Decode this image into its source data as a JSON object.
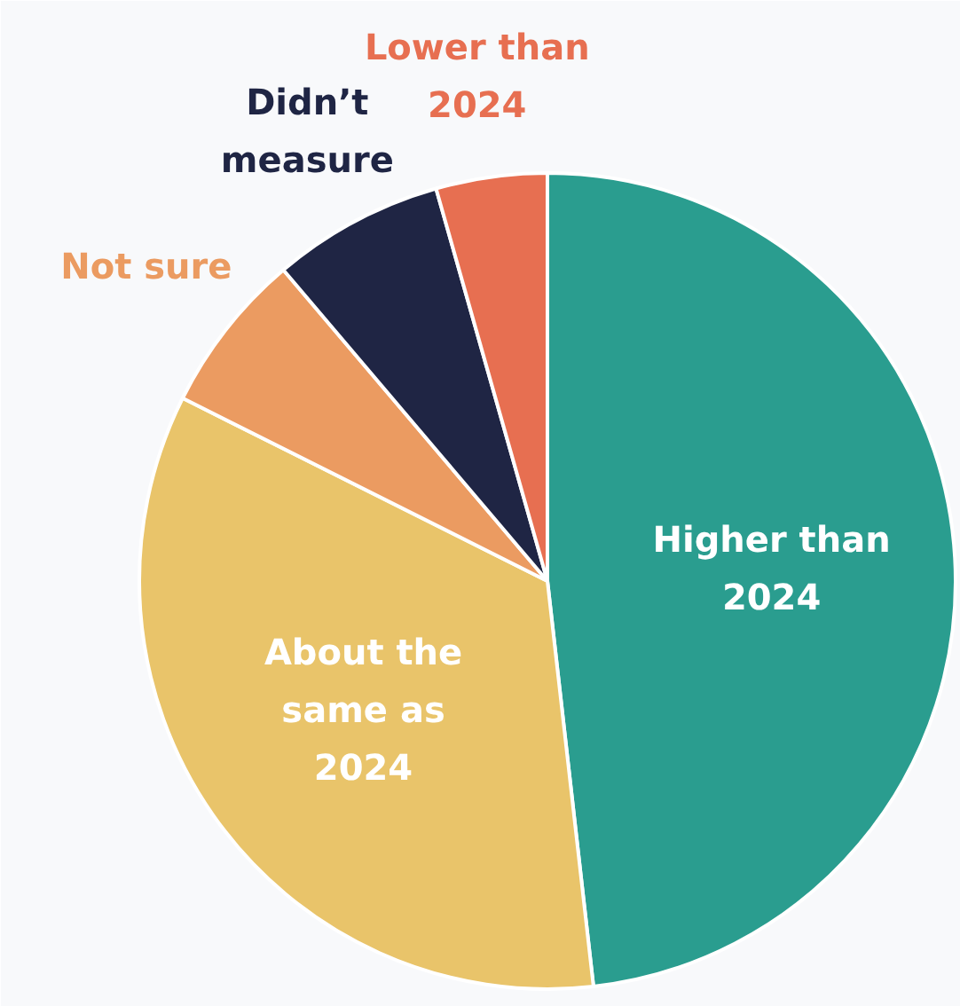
{
  "chart_data": {
    "type": "pie",
    "categories": [
      "Higher than 2024",
      "About the same as 2024",
      "Not sure",
      "Didn’t measure",
      "Lower than 2024"
    ],
    "values": [
      48.2,
      34.2,
      6.4,
      6.8,
      4.4
    ],
    "colors": [
      "#2a9d8f",
      "#e9c46a",
      "#eb9b61",
      "#1f2544",
      "#e76f51"
    ]
  }
}
